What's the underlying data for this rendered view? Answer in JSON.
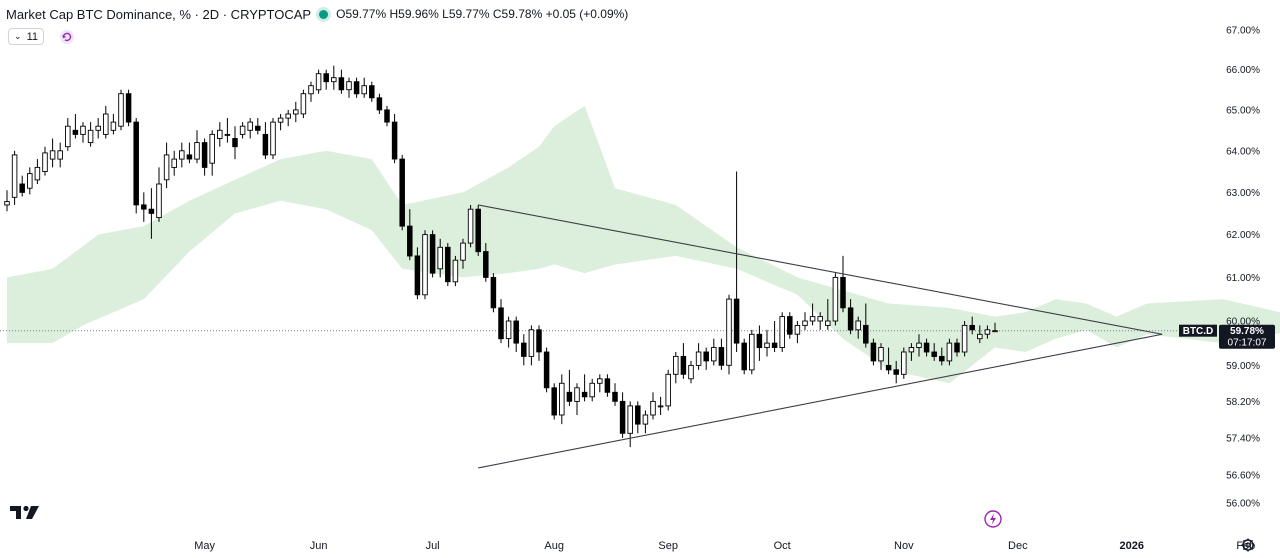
{
  "header": {
    "title": "Market Cap BTC Dominance, % · 2D · CRYPTOCAP",
    "ohlc": "O59.77% H59.96% L59.77% C59.78% +0.05 (+0.09%)"
  },
  "interval_box": {
    "label": "11"
  },
  "price_tag": {
    "symbol": "BTC.D",
    "value": "59.78%",
    "countdown": "07:17:07"
  },
  "colors": {
    "up_body": "#ffffff",
    "down_body": "#000000",
    "wick": "#000000",
    "cloud_bull": "#dcefdc",
    "cloud_bear": "#fde2df",
    "trendline": "#3c3f48",
    "status_dot": "#089981",
    "flash_icon": "#9c27b0"
  },
  "icons": [
    "tradingview-logo-icon",
    "refresh-icon",
    "flash-icon",
    "gear-icon"
  ],
  "chart_data": {
    "type": "candlestick",
    "title": "Market Cap BTC Dominance, % · 2D · CRYPTOCAP",
    "y_scale": "log",
    "ylim": [
      55.6,
      67.4
    ],
    "y_ticks": [
      56.0,
      56.6,
      57.4,
      58.2,
      59.0,
      60.0,
      61.0,
      62.0,
      63.0,
      64.0,
      65.0,
      66.0,
      67.0
    ],
    "y_tick_labels": [
      "56.00%",
      "56.60%",
      "57.40%",
      "58.20%",
      "59.00%",
      "60.00%",
      "61.00%",
      "62.00%",
      "63.00%",
      "64.00%",
      "65.00%",
      "66.00%",
      "67.00%"
    ],
    "x_tick_labels": [
      "May",
      "Jun",
      "Jul",
      "Aug",
      "Sep",
      "Oct",
      "Nov",
      "Dec",
      "2026",
      "Feb"
    ],
    "x_tick_bars": [
      26,
      41,
      56,
      72,
      87,
      102,
      118,
      133,
      148,
      163
    ],
    "current_price": 59.78,
    "candles": [
      [
        62.7,
        63.05,
        62.55,
        62.78
      ],
      [
        62.88,
        64.0,
        62.7,
        63.9
      ],
      [
        63.2,
        63.4,
        62.9,
        63.0
      ],
      [
        63.1,
        63.6,
        62.95,
        63.45
      ],
      [
        63.3,
        63.8,
        63.2,
        63.6
      ],
      [
        63.5,
        64.1,
        63.4,
        63.95
      ],
      [
        63.8,
        64.3,
        63.6,
        64.0
      ],
      [
        63.8,
        64.2,
        63.6,
        64.0
      ],
      [
        64.1,
        64.8,
        64.0,
        64.6
      ],
      [
        64.5,
        64.9,
        64.3,
        64.4
      ],
      [
        64.4,
        64.7,
        64.2,
        64.6
      ],
      [
        64.2,
        64.7,
        64.1,
        64.5
      ],
      [
        64.5,
        64.8,
        64.3,
        64.6
      ],
      [
        64.4,
        65.1,
        64.3,
        64.9
      ],
      [
        64.5,
        64.9,
        64.4,
        64.7
      ],
      [
        64.6,
        65.5,
        64.5,
        65.4
      ],
      [
        65.4,
        65.5,
        64.6,
        64.7
      ],
      [
        64.7,
        64.8,
        62.5,
        62.7
      ],
      [
        62.7,
        63.0,
        62.3,
        62.6
      ],
      [
        62.6,
        63.1,
        61.9,
        62.5
      ],
      [
        62.4,
        63.6,
        62.3,
        63.2
      ],
      [
        63.3,
        64.2,
        63.1,
        63.9
      ],
      [
        63.6,
        64.0,
        63.4,
        63.8
      ],
      [
        63.8,
        64.2,
        63.6,
        64.0
      ],
      [
        63.9,
        64.2,
        63.7,
        63.8
      ],
      [
        63.8,
        64.5,
        63.7,
        64.2
      ],
      [
        64.2,
        64.3,
        63.4,
        63.6
      ],
      [
        63.7,
        64.5,
        63.4,
        64.4
      ],
      [
        64.3,
        64.7,
        64.1,
        64.5
      ],
      [
        64.4,
        64.8,
        64.2,
        64.4
      ],
      [
        64.3,
        64.6,
        63.8,
        64.1
      ],
      [
        64.4,
        64.7,
        64.3,
        64.6
      ],
      [
        64.5,
        64.8,
        64.3,
        64.7
      ],
      [
        64.6,
        64.8,
        64.4,
        64.5
      ],
      [
        64.4,
        64.7,
        63.8,
        63.9
      ],
      [
        63.9,
        64.8,
        63.8,
        64.7
      ],
      [
        64.7,
        64.9,
        64.5,
        64.8
      ],
      [
        64.8,
        65.0,
        64.6,
        64.9
      ],
      [
        64.9,
        65.2,
        64.7,
        65.0
      ],
      [
        64.9,
        65.5,
        64.8,
        65.4
      ],
      [
        65.4,
        65.7,
        65.2,
        65.6
      ],
      [
        65.5,
        66.0,
        65.4,
        65.9
      ],
      [
        65.9,
        66.0,
        65.5,
        65.7
      ],
      [
        65.7,
        66.1,
        65.5,
        65.8
      ],
      [
        65.8,
        66.0,
        65.4,
        65.5
      ],
      [
        65.5,
        65.8,
        65.3,
        65.7
      ],
      [
        65.7,
        65.8,
        65.3,
        65.4
      ],
      [
        65.4,
        65.8,
        65.3,
        65.6
      ],
      [
        65.6,
        65.7,
        65.2,
        65.3
      ],
      [
        65.3,
        65.4,
        64.9,
        65.0
      ],
      [
        65.0,
        65.1,
        64.6,
        64.7
      ],
      [
        64.7,
        64.9,
        63.7,
        63.8
      ],
      [
        63.8,
        63.9,
        62.1,
        62.2
      ],
      [
        62.2,
        62.6,
        61.4,
        61.5
      ],
      [
        61.5,
        61.7,
        60.5,
        60.6
      ],
      [
        60.6,
        62.1,
        60.5,
        62.0
      ],
      [
        62.0,
        62.1,
        61.0,
        61.1
      ],
      [
        61.2,
        61.9,
        61.0,
        61.7
      ],
      [
        61.7,
        61.8,
        60.8,
        60.9
      ],
      [
        60.9,
        61.5,
        60.8,
        61.4
      ],
      [
        61.4,
        61.9,
        61.2,
        61.8
      ],
      [
        61.8,
        62.7,
        61.7,
        62.6
      ],
      [
        62.6,
        62.7,
        61.5,
        61.6
      ],
      [
        61.6,
        61.8,
        60.9,
        61.0
      ],
      [
        61.0,
        61.1,
        60.2,
        60.3
      ],
      [
        60.3,
        60.5,
        59.5,
        59.6
      ],
      [
        59.6,
        60.1,
        59.4,
        60.0
      ],
      [
        60.0,
        60.1,
        59.3,
        59.5
      ],
      [
        59.5,
        59.7,
        59.0,
        59.2
      ],
      [
        59.2,
        59.9,
        59.0,
        59.8
      ],
      [
        59.8,
        59.9,
        59.1,
        59.3
      ],
      [
        59.3,
        59.4,
        58.4,
        58.5
      ],
      [
        58.5,
        58.6,
        57.8,
        57.9
      ],
      [
        57.9,
        58.8,
        57.7,
        58.6
      ],
      [
        58.4,
        58.9,
        58.1,
        58.2
      ],
      [
        58.2,
        58.6,
        57.9,
        58.5
      ],
      [
        58.4,
        58.8,
        58.2,
        58.3
      ],
      [
        58.3,
        58.7,
        58.2,
        58.6
      ],
      [
        58.6,
        58.8,
        58.4,
        58.7
      ],
      [
        58.7,
        58.8,
        58.3,
        58.4
      ],
      [
        58.4,
        58.6,
        58.1,
        58.2
      ],
      [
        58.2,
        58.4,
        57.4,
        57.5
      ],
      [
        57.5,
        58.2,
        57.2,
        58.1
      ],
      [
        58.1,
        58.2,
        57.5,
        57.7
      ],
      [
        57.7,
        58.0,
        57.5,
        57.9
      ],
      [
        57.9,
        58.4,
        57.8,
        58.2
      ],
      [
        58.1,
        58.3,
        57.9,
        58.1
      ],
      [
        58.1,
        58.9,
        58.0,
        58.8
      ],
      [
        58.8,
        59.3,
        58.6,
        59.2
      ],
      [
        59.2,
        59.5,
        58.7,
        58.8
      ],
      [
        58.7,
        59.1,
        58.6,
        59.0
      ],
      [
        59.0,
        59.5,
        58.9,
        59.3
      ],
      [
        59.3,
        59.4,
        58.9,
        59.1
      ],
      [
        59.1,
        59.6,
        59.0,
        59.4
      ],
      [
        59.4,
        59.6,
        58.9,
        59.0
      ],
      [
        59.0,
        60.6,
        58.8,
        60.5
      ],
      [
        60.5,
        63.5,
        59.3,
        59.5
      ],
      [
        59.5,
        59.6,
        58.8,
        58.9
      ],
      [
        58.9,
        59.8,
        58.8,
        59.7
      ],
      [
        59.7,
        59.9,
        59.1,
        59.4
      ],
      [
        59.4,
        59.8,
        59.2,
        59.5
      ],
      [
        59.5,
        60.0,
        59.3,
        59.4
      ],
      [
        59.4,
        60.2,
        59.3,
        60.1
      ],
      [
        60.1,
        60.2,
        59.6,
        59.7
      ],
      [
        59.7,
        60.0,
        59.5,
        59.9
      ],
      [
        59.9,
        60.2,
        59.8,
        60.0
      ],
      [
        60.0,
        60.4,
        59.9,
        60.1
      ],
      [
        60.0,
        60.2,
        59.8,
        60.1
      ],
      [
        59.9,
        60.5,
        59.8,
        60.0
      ],
      [
        60.0,
        61.1,
        59.9,
        61.0
      ],
      [
        61.0,
        61.5,
        60.2,
        60.3
      ],
      [
        60.3,
        60.5,
        59.7,
        59.8
      ],
      [
        59.8,
        60.1,
        59.6,
        60.0
      ],
      [
        59.9,
        60.4,
        59.4,
        59.5
      ],
      [
        59.5,
        59.6,
        59.0,
        59.1
      ],
      [
        59.1,
        59.5,
        58.9,
        59.4
      ],
      [
        59.0,
        59.4,
        58.8,
        58.9
      ],
      [
        58.9,
        59.1,
        58.6,
        58.8
      ],
      [
        58.8,
        59.4,
        58.7,
        59.3
      ],
      [
        59.3,
        59.5,
        59.1,
        59.4
      ],
      [
        59.4,
        59.7,
        59.2,
        59.5
      ],
      [
        59.5,
        59.6,
        59.2,
        59.3
      ],
      [
        59.3,
        59.5,
        59.1,
        59.2
      ],
      [
        59.2,
        59.4,
        59.0,
        59.1
      ],
      [
        59.1,
        59.6,
        59.0,
        59.5
      ],
      [
        59.5,
        59.6,
        59.2,
        59.3
      ],
      [
        59.3,
        60.0,
        59.2,
        59.9
      ],
      [
        59.9,
        60.1,
        59.7,
        59.8
      ],
      [
        59.6,
        59.9,
        59.5,
        59.7
      ],
      [
        59.7,
        59.9,
        59.6,
        59.8
      ],
      [
        59.77,
        59.96,
        59.77,
        59.78
      ]
    ],
    "cloud_upper": [
      [
        0,
        61.0
      ],
      [
        6,
        61.2
      ],
      [
        12,
        62.0
      ],
      [
        18,
        62.2
      ],
      [
        24,
        62.8
      ],
      [
        30,
        63.3
      ],
      [
        36,
        63.8
      ],
      [
        42,
        64.0
      ],
      [
        48,
        63.8
      ],
      [
        52,
        62.7
      ],
      [
        60,
        63.0
      ],
      [
        66,
        63.6
      ],
      [
        70,
        64.1
      ],
      [
        72,
        64.6
      ],
      [
        76,
        65.1
      ],
      [
        78,
        64.1
      ],
      [
        80,
        63.1
      ],
      [
        88,
        62.7
      ],
      [
        96,
        61.7
      ],
      [
        104,
        61.0
      ],
      [
        110,
        60.7
      ],
      [
        116,
        60.4
      ],
      [
        124,
        60.3
      ],
      [
        130,
        60.1
      ],
      [
        134,
        60.2
      ],
      [
        138,
        60.5
      ],
      [
        142,
        60.4
      ],
      [
        146,
        60.1
      ],
      [
        150,
        60.4
      ],
      [
        160,
        60.5
      ],
      [
        170,
        60.1
      ]
    ],
    "cloud_lower": [
      [
        0,
        59.5
      ],
      [
        6,
        59.5
      ],
      [
        10,
        59.9
      ],
      [
        14,
        60.2
      ],
      [
        18,
        60.5
      ],
      [
        24,
        61.6
      ],
      [
        30,
        62.5
      ],
      [
        36,
        62.8
      ],
      [
        42,
        62.6
      ],
      [
        48,
        62.1
      ],
      [
        52,
        61.2
      ],
      [
        60,
        61.0
      ],
      [
        66,
        61.1
      ],
      [
        70,
        61.2
      ],
      [
        72,
        61.3
      ],
      [
        76,
        61.1
      ],
      [
        80,
        61.3
      ],
      [
        88,
        61.5
      ],
      [
        96,
        61.2
      ],
      [
        104,
        60.6
      ],
      [
        110,
        59.6
      ],
      [
        116,
        58.9
      ],
      [
        124,
        58.6
      ],
      [
        130,
        59.4
      ],
      [
        134,
        59.3
      ],
      [
        138,
        59.6
      ],
      [
        142,
        59.8
      ],
      [
        146,
        59.4
      ],
      [
        150,
        59.7
      ],
      [
        160,
        59.5
      ],
      [
        170,
        59.8
      ]
    ],
    "trendlines": [
      {
        "points": [
          [
            62,
            62.7
          ],
          [
            152,
            59.7
          ]
        ]
      },
      {
        "points": [
          [
            62,
            56.75
          ],
          [
            152,
            59.7
          ]
        ]
      }
    ]
  }
}
